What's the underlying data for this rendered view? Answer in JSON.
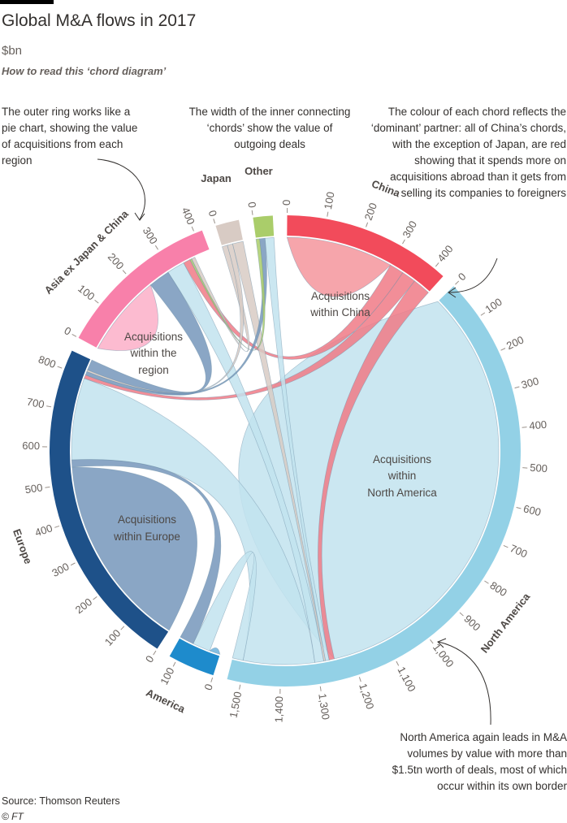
{
  "header": {
    "title": "Global M&A flows in 2017",
    "subtitle": "$bn",
    "how_to": "How to read this ‘chord diagram’"
  },
  "annotations": {
    "outer_ring": "The outer ring works like a pie chart, showing the value of acquisitions from each region",
    "chords_width": "The width of the inner connecting ‘chords’ show the value of outgoing deals",
    "chord_colour": "The colour of each chord reflects the ‘dominant’ partner: all of China’s chords, with the exception of Japan, are red showing that it spends more on acquisitions abroad than it gets from selling its companies to foreigners",
    "north_america": "North America again leads in M&A volumes by value with more than $1.5tn worth of deals, most of which occur within its own border"
  },
  "inner_labels": {
    "china": [
      "Acquisitions",
      "within China"
    ],
    "asia": [
      "Acquisitions",
      "within the",
      "region"
    ],
    "north_america": [
      "Acquisitions",
      "within",
      "North America"
    ],
    "europe": [
      "Acquisitions",
      "within Europe"
    ]
  },
  "footer": {
    "source": "Source: Thomson Reuters",
    "copyright": "© FT"
  },
  "chart_data": {
    "type": "chord",
    "unit": "$bn",
    "regions": [
      {
        "id": "china",
        "label": "China",
        "total": 430,
        "color": "#f24b5b",
        "ticks": [
          "0",
          "100",
          "200",
          "300",
          "400"
        ]
      },
      {
        "id": "na",
        "label": "North America",
        "total": 1535,
        "color": "#93d1e6",
        "ticks": [
          "0",
          "100",
          "200",
          "300",
          "400",
          "500",
          "600",
          "700",
          "800",
          "900",
          "1,000",
          "1,100",
          "1,200",
          "1,300",
          "1,400",
          "1,500"
        ]
      },
      {
        "id": "america",
        "label": "America",
        "total": 120,
        "color": "#1e8bcc",
        "ticks": [
          "0",
          "100"
        ]
      },
      {
        "id": "europe",
        "label": "Europe",
        "total": 850,
        "color": "#1e5189",
        "ticks": [
          "0",
          "100",
          "200",
          "300",
          "400",
          "500",
          "600",
          "700",
          "800"
        ]
      },
      {
        "id": "asia",
        "label": "Asia ex Japan & China",
        "total": 420,
        "color": "#f880aa",
        "ticks": [
          "0",
          "100",
          "200",
          "300",
          "400"
        ]
      },
      {
        "id": "japan",
        "label": "Japan",
        "total": 60,
        "color": "#d8cbc4",
        "ticks": [
          "0"
        ]
      },
      {
        "id": "other",
        "label": "Other",
        "total": 50,
        "color": "#aacd6a",
        "ticks": [
          "0"
        ]
      }
    ],
    "flows": [
      {
        "a": "china",
        "b": "china",
        "va": 300,
        "vb": 300,
        "color": "#f5959c"
      },
      {
        "a": "na",
        "b": "na",
        "va": 1250,
        "vb": 1250,
        "color": "#c2e3ef"
      },
      {
        "a": "europe",
        "b": "europe",
        "va": 545,
        "vb": 545,
        "color": "#7697bb"
      },
      {
        "a": "asia",
        "b": "asia",
        "va": 230,
        "vb": 230,
        "color": "#fbafc8"
      },
      {
        "a": "america",
        "b": "america",
        "va": 30,
        "vb": 30,
        "color": "#6fb4dd"
      },
      {
        "a": "na",
        "b": "europe",
        "va": 200,
        "vb": 230,
        "color": "#c2e3ef"
      },
      {
        "a": "china",
        "b": "na",
        "va": 50,
        "vb": 15,
        "color": "#f07a86"
      },
      {
        "a": "china",
        "b": "europe",
        "va": 40,
        "vb": 10,
        "color": "#f07a86"
      },
      {
        "a": "china",
        "b": "asia",
        "va": 40,
        "vb": 20,
        "color": "#f07a86"
      },
      {
        "a": "asia",
        "b": "na",
        "va": 50,
        "vb": 25,
        "color": "#c2e3ef"
      },
      {
        "a": "asia",
        "b": "europe",
        "va": 60,
        "vb": 30,
        "color": "#7697bb"
      },
      {
        "a": "japan",
        "b": "na",
        "va": 30,
        "vb": 5,
        "color": "#d8cbc4"
      },
      {
        "a": "japan",
        "b": "asia",
        "va": 15,
        "vb": 10,
        "color": "#d8cbc4"
      },
      {
        "a": "japan",
        "b": "europe",
        "va": 15,
        "vb": 5,
        "color": "#d8cbc4"
      },
      {
        "a": "other",
        "b": "na",
        "va": 25,
        "vb": 10,
        "color": "#c2e3ef"
      },
      {
        "a": "other",
        "b": "europe",
        "va": 15,
        "vb": 10,
        "color": "#7697bb"
      },
      {
        "a": "other",
        "b": "asia",
        "va": 10,
        "vb": 5,
        "color": "#aacd6a"
      },
      {
        "a": "america",
        "b": "na",
        "va": 50,
        "vb": 30,
        "color": "#c2e3ef"
      },
      {
        "a": "america",
        "b": "europe",
        "va": 40,
        "vb": 20,
        "color": "#7697bb"
      }
    ]
  }
}
